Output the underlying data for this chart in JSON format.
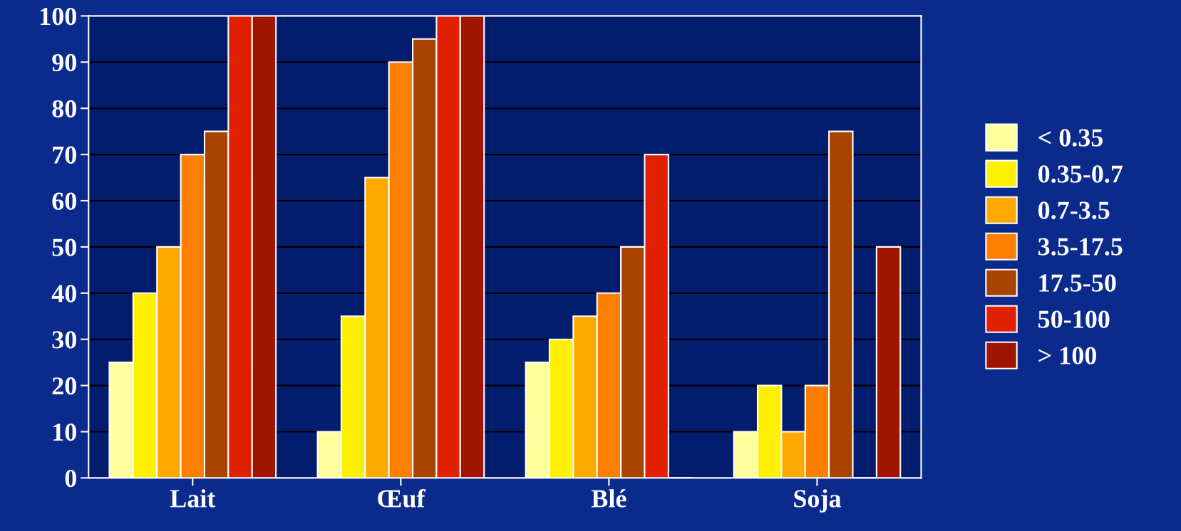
{
  "chart_data": {
    "type": "bar",
    "categories": [
      "Lait",
      "Œuf",
      "Blé",
      "Soja"
    ],
    "series": [
      {
        "name": "< 0.35",
        "color": "#ffffa0",
        "values": [
          25,
          10,
          25,
          10
        ]
      },
      {
        "name": "0.35-0.7",
        "color": "#fff000",
        "values": [
          40,
          35,
          30,
          20
        ]
      },
      {
        "name": "0.7-3.5",
        "color": "#ffa800",
        "values": [
          50,
          65,
          35,
          10
        ]
      },
      {
        "name": "3.5-17.5",
        "color": "#ff7f00",
        "values": [
          70,
          90,
          40,
          20
        ]
      },
      {
        "name": "17.5-50",
        "color": "#a84400",
        "values": [
          75,
          95,
          50,
          75
        ]
      },
      {
        "name": "50-100",
        "color": "#e02000",
        "values": [
          100,
          100,
          70,
          0
        ]
      },
      {
        "name": "> 100",
        "color": "#a01400",
        "values": [
          100,
          100,
          0,
          50
        ]
      }
    ],
    "ylim": [
      0,
      100
    ],
    "yticks": [
      0,
      10,
      20,
      30,
      40,
      50,
      60,
      70,
      80,
      90,
      100
    ],
    "grid": "y",
    "legend": "right"
  }
}
